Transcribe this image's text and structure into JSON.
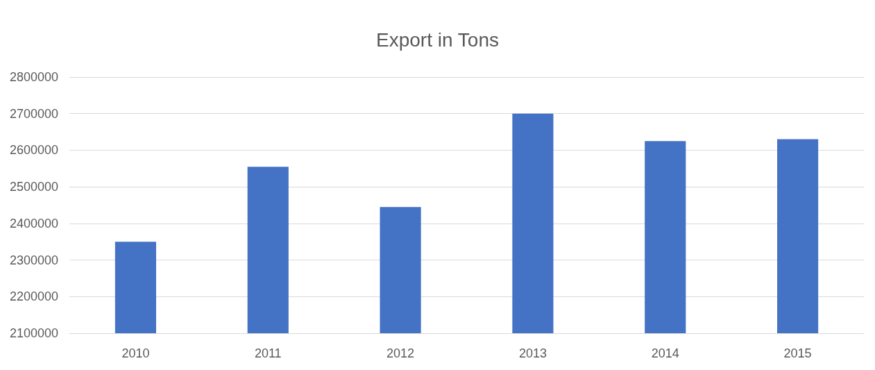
{
  "chart_data": {
    "type": "bar",
    "title": "Export in Tons",
    "categories": [
      "2010",
      "2011",
      "2012",
      "2013",
      "2014",
      "2015"
    ],
    "values": [
      2350000,
      2555000,
      2445000,
      2700000,
      2625000,
      2630000
    ],
    "color": "#4472c4",
    "ylim": [
      2100000,
      2800000
    ],
    "yticks": [
      2100000,
      2200000,
      2300000,
      2400000,
      2500000,
      2600000,
      2700000,
      2800000
    ],
    "grid": "y"
  }
}
